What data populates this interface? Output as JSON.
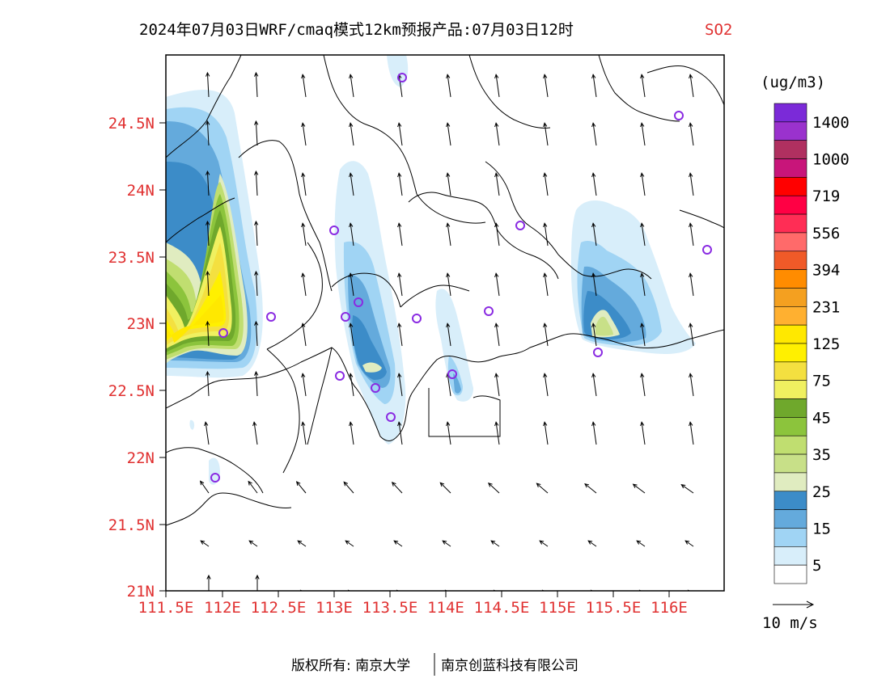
{
  "title": {
    "main": "2024年07月03日WRF/cmaq模式12km预报产品:07月03日12时",
    "species": "SO2"
  },
  "colors": {
    "tick_label": "#e03030",
    "species_label": "#e03030",
    "site_marker": "#8a2be2"
  },
  "map": {
    "x_ticks": [
      "111.5E",
      "112E",
      "112.5E",
      "113E",
      "113.5E",
      "114E",
      "114.5E",
      "115E",
      "115.5E",
      "116E"
    ],
    "y_ticks": [
      "24.5N",
      "24N",
      "23.5N",
      "23N",
      "22.5N",
      "22N",
      "21.5N",
      "21N"
    ],
    "lon_range": [
      111.5,
      116.6
    ],
    "lat_range": [
      21.0,
      25.0
    ]
  },
  "colorbar": {
    "unit": "(ug/m3)",
    "labels": [
      "1400",
      "1000",
      "719",
      "556",
      "394",
      "231",
      "125",
      "75",
      "45",
      "35",
      "25",
      "15",
      "5"
    ],
    "colors": [
      "#7b2ad8",
      "#9a32cd",
      "#b03060",
      "#c8157a",
      "#ff0000",
      "#ff0044",
      "#ff2d55",
      "#ff6a6a",
      "#f05a28",
      "#ff8c00",
      "#f4a020",
      "#ffb030",
      "#ffe800",
      "#fff000",
      "#f4e040",
      "#f0f060",
      "#6fa82c",
      "#8cc43c",
      "#c0de70",
      "#c8e088",
      "#e0ecc0",
      "#3c8cc8",
      "#64aadc",
      "#a0d4f4",
      "#d8eefa",
      "#ffffff"
    ]
  },
  "wind_legend": {
    "label": "10 m/s"
  },
  "footer": {
    "left": "版权所有: 南京大学",
    "right": "南京创蓝科技有限公司"
  }
}
